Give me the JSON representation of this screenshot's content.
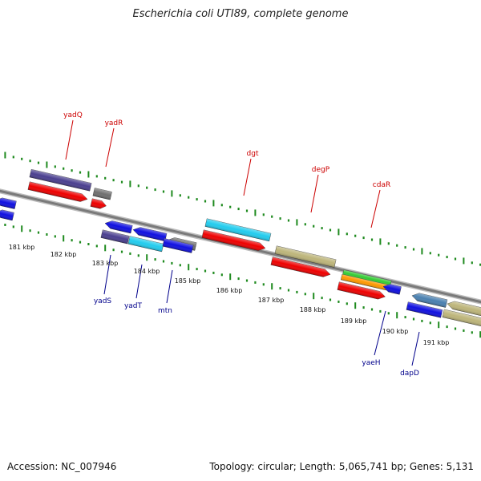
{
  "title": "Escherichia coli UTI89, complete genome",
  "footer": {
    "accession": "Accession: NC_007946",
    "summary": "Topology: circular; Length: 5,065,741 bp; Genes: 5,131"
  },
  "colors": {
    "backbone": "#8a8a8a",
    "tick": "#1e8a1e",
    "label_forward": "#cc0000",
    "label_reverse": "#00008b",
    "cds_red": "#ee0000",
    "blue": "#1010e0",
    "cyan": "#22ccee",
    "purple": "#4a3f8f",
    "khaki": "#bdb57a",
    "gray": "#6f6f6f",
    "green": "#33cc33",
    "orange": "#ff9900",
    "steel": "#4a80b0"
  },
  "scale": {
    "labels": [
      "181 kbp",
      "182 kbp",
      "183 kbp",
      "184 kbp",
      "185 kbp",
      "186 kbp",
      "187 kbp",
      "188 kbp",
      "189 kbp",
      "190 kbp",
      "191 kbp"
    ]
  },
  "gene_labels": {
    "forward": [
      "yadQ",
      "yadR",
      "dgt",
      "degP",
      "cdaR"
    ],
    "reverse": [
      "yadS",
      "yadT",
      "mtn",
      "yaeH",
      "dapD"
    ]
  },
  "features": {
    "forward": [
      "purple",
      "cds_red",
      "gray",
      "cds_red",
      "cyan",
      "cds_red",
      "khaki",
      "cds_red",
      "green",
      "orange",
      "cds_red"
    ],
    "reverse": [
      "blue",
      "blue",
      "blue",
      "blue",
      "gray",
      "purple",
      "cyan",
      "blue",
      "blue",
      "steel",
      "blue",
      "khaki"
    ]
  }
}
